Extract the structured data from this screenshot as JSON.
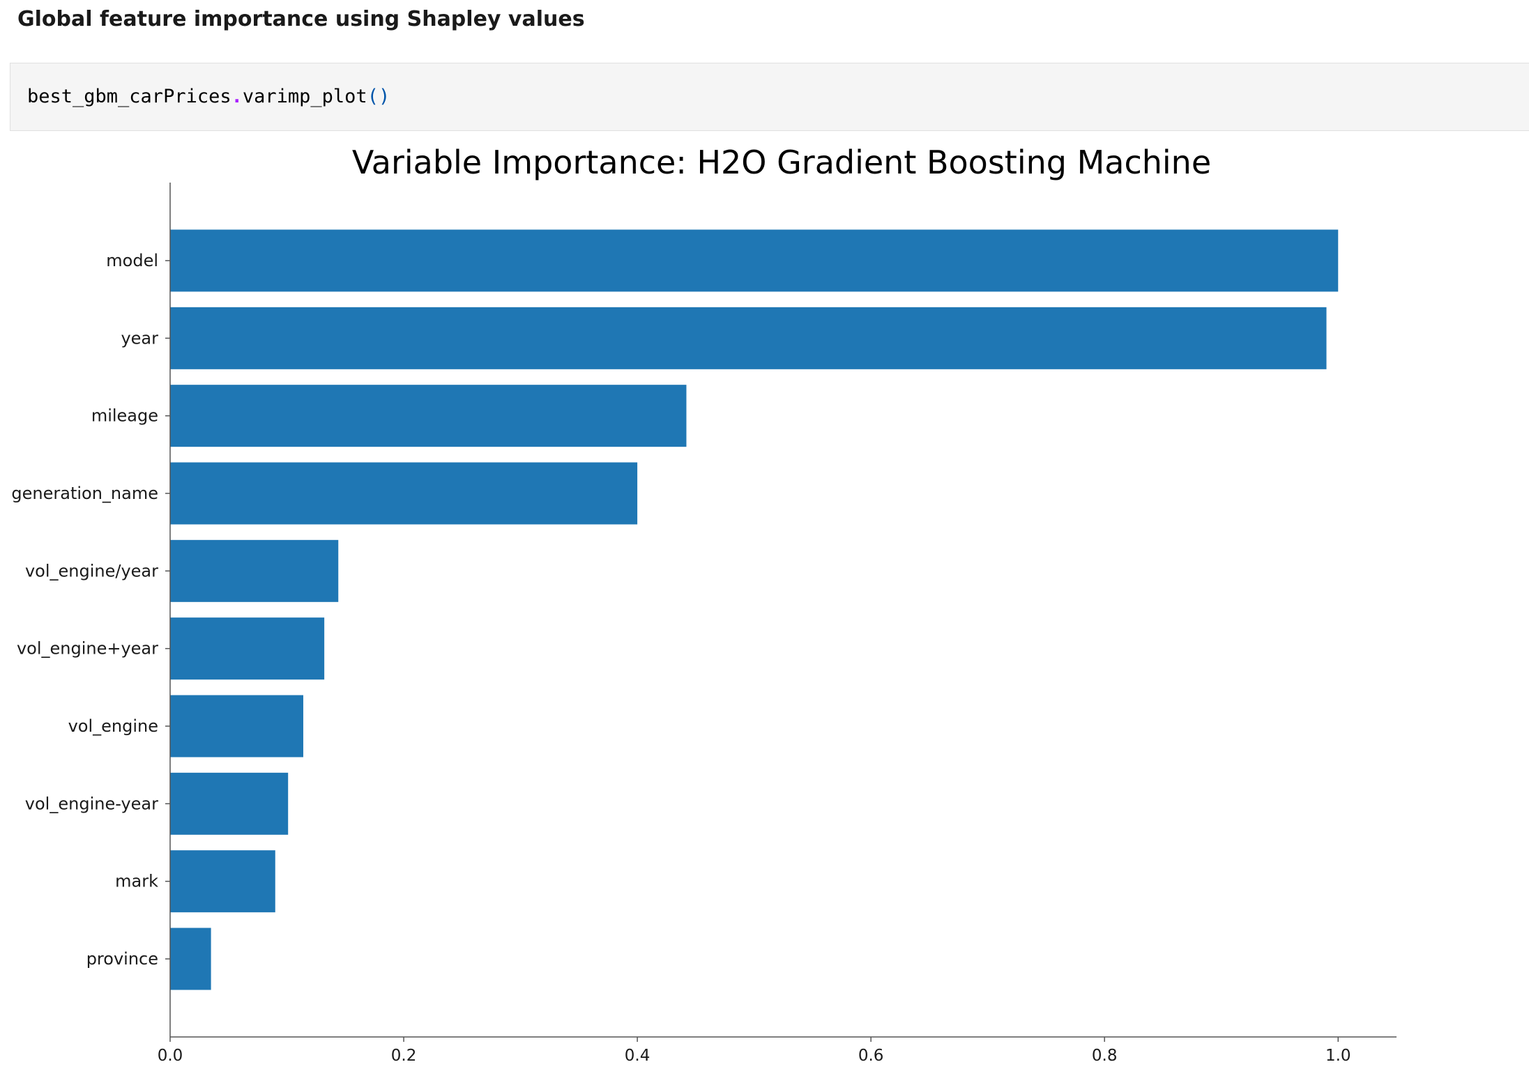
{
  "page": {
    "heading": "Global feature importance using Shapley values"
  },
  "code_cell": {
    "object": "best_gbm_carPrices",
    "dot": ".",
    "method": "varimp_plot",
    "parens": "()"
  },
  "chart_data": {
    "type": "bar",
    "orientation": "horizontal",
    "title": "Variable Importance: H2O Gradient Boosting Machine",
    "xlabel": "",
    "ylabel": "",
    "categories": [
      "model",
      "year",
      "mileage",
      "generation_name",
      "vol_engine/year",
      "vol_engine+year",
      "vol_engine",
      "vol_engine-year",
      "mark",
      "province"
    ],
    "values": [
      1.0,
      0.99,
      0.442,
      0.4,
      0.144,
      0.132,
      0.114,
      0.101,
      0.09,
      0.035
    ],
    "xlim": [
      0,
      1.05
    ],
    "xticks": [
      0.0,
      0.2,
      0.4,
      0.6,
      0.8,
      1.0
    ],
    "xtick_labels": [
      "0.0",
      "0.2",
      "0.4",
      "0.6",
      "0.8",
      "1.0"
    ],
    "grid": false,
    "legend": "none",
    "bar_color": "#1f77b4"
  }
}
